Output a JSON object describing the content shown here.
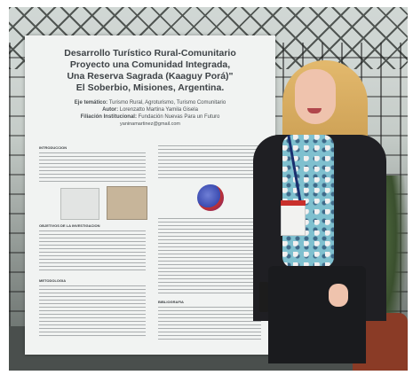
{
  "poster": {
    "title_lines": [
      "Desarrollo Turístico Rural-Comunitario",
      "Proyecto una Comunidad Integrada,",
      "Una Reserva Sagrada (Kaaguy Porá)\"",
      "El Soberbio, Misiones, Argentina."
    ],
    "eje_label": "Eje temático:",
    "eje_value": "Turismo Rural, Agroturismo, Turismo Comunitario",
    "autor_label": "Autor:",
    "autor_value": "Lorenzatto Martina Yamila Gisela",
    "filiacion_label": "Filiación Institucional:",
    "filiacion_value": "Fundación Nuevas Para un Futuro",
    "email": "yaninamartinez@gmail.com",
    "sections": {
      "intro": "INTRODUCCION",
      "objetivos": "OBJETIVOS DE LA INVESTIGACION",
      "metodologia": "METODOLOGIA",
      "bibliografia": "BIBLIOGRAFIA"
    }
  }
}
